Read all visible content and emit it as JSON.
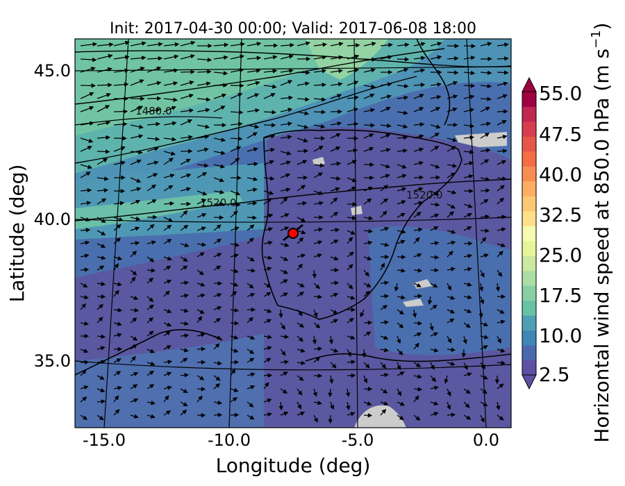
{
  "title": "Init: 2017-04-30 00:00; Valid: 2017-06-08 18:00",
  "xlabel": "Longitude (deg)",
  "ylabel": "Latitude (deg)",
  "colorbar": {
    "label": "Horizontal wind speed at 850.0 hPa (m s",
    "label_sup": "−1",
    "label_end": ")",
    "ticks": [
      "55.0",
      "47.5",
      "40.0",
      "32.5",
      "25.0",
      "17.5",
      "10.0",
      "2.5"
    ],
    "range": [
      2.5,
      55.0
    ],
    "levels": 22,
    "colors": [
      "#5e4fa2",
      "#4a69ad",
      "#3f85b8",
      "#4fa0b4",
      "#66c2a5",
      "#88d0a4",
      "#abdda4",
      "#cbe99f",
      "#e6f598",
      "#f5fbb0",
      "#fee08b",
      "#fdc874",
      "#fdae61",
      "#f88d52",
      "#f46d43",
      "#e55749",
      "#d53e4f",
      "#c0274f",
      "#9e0142"
    ]
  },
  "chart_data": {
    "type": "map",
    "xlim": [
      -16,
      0.3
    ],
    "ylim": [
      32.5,
      46
    ],
    "xticks": [
      "-15.0",
      "-10.0",
      "-5.0",
      "0.0"
    ],
    "xtick_values": [
      -15,
      -10,
      -5,
      0
    ],
    "yticks": [
      "45.0",
      "40.0",
      "35.0"
    ],
    "ytick_values": [
      45,
      40,
      35
    ],
    "contour_labels": [
      "1480.0",
      "1520.0",
      "1520.0"
    ],
    "marker": {
      "lon": -7.7,
      "lat": 39.3,
      "color": "#ff0000"
    }
  }
}
